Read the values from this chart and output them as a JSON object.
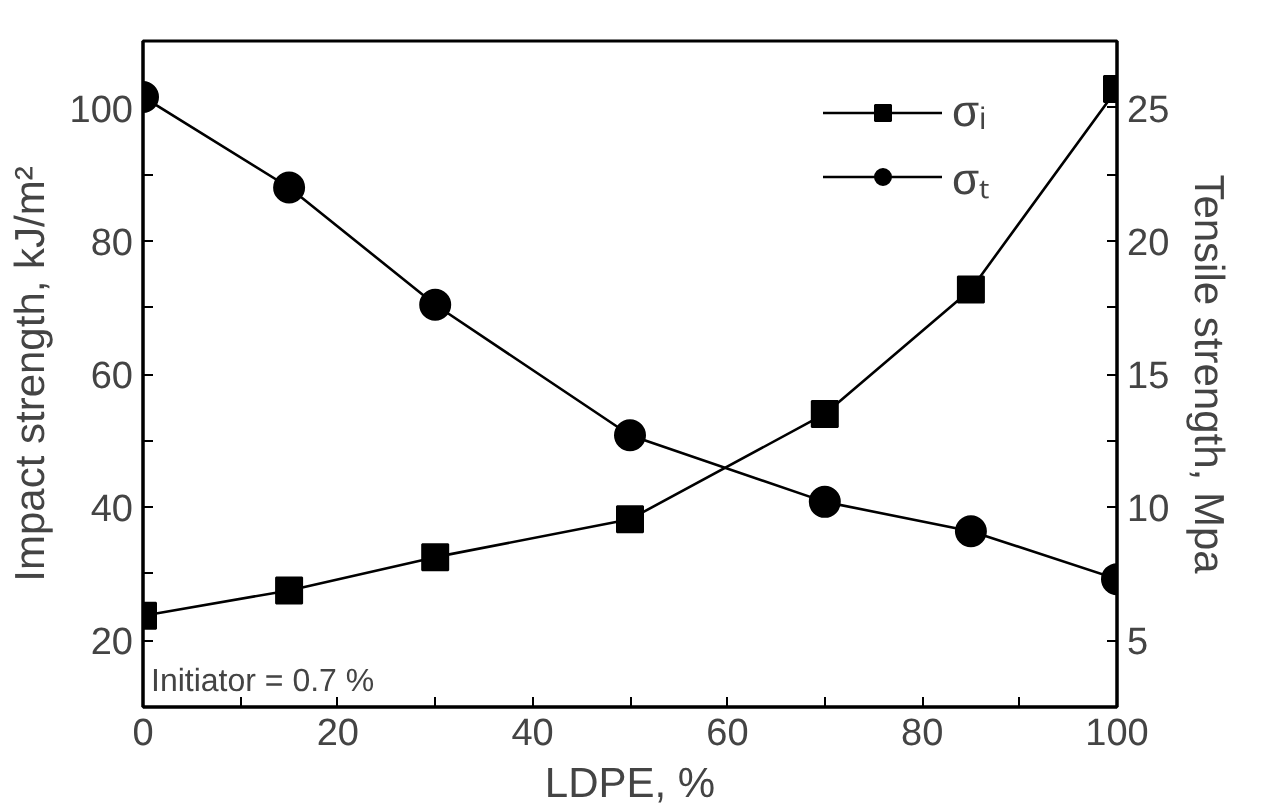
{
  "chart_data": {
    "type": "line",
    "xlabel": "LDPE, %",
    "ylabel": "Impact strength, kJ/m²",
    "y2label": "Tensile strength, Mpa",
    "x": [
      0,
      15,
      30,
      50,
      70,
      85,
      100
    ],
    "series": [
      {
        "name": "σᵢ",
        "color": "#000000",
        "marker": "square",
        "values": [
          23.7,
          27.5,
          32.5,
          38.2,
          54,
          72.7,
          102.8
        ]
      },
      {
        "name": "σₜ",
        "color": "#000000",
        "marker": "circle",
        "axis": "y2",
        "values": [
          25.4,
          22.0,
          17.6,
          12.7,
          10.2,
          9.1,
          7.3
        ]
      }
    ],
    "xlim": [
      0,
      100
    ],
    "xticks": [
      0,
      {
        "value": 10,
        "label": null
      },
      20,
      {
        "value": 30,
        "label": null
      },
      40,
      {
        "value": 50,
        "label": null
      },
      60,
      {
        "value": 70,
        "label": null
      },
      80,
      {
        "value": 90,
        "label": null
      },
      100
    ],
    "ylim": [
      10,
      110
    ],
    "yticks": [
      20,
      {
        "value": 30,
        "label": null
      },
      40,
      {
        "value": 50,
        "label": null
      },
      60,
      {
        "value": 70,
        "label": null
      },
      80,
      {
        "value": 90,
        "label": null
      },
      100
    ],
    "y2lim": [
      2.5,
      27.5
    ],
    "y2ticks": [
      5,
      {
        "value": 7.5,
        "label": null
      },
      10,
      {
        "value": 12.5,
        "label": null
      },
      15,
      {
        "value": 17.5,
        "label": null
      },
      20,
      {
        "value": 22.5,
        "label": null
      },
      25
    ],
    "annotations": [
      "Initiator = 0.7 %"
    ],
    "legend": "top right",
    "grid": false,
    "line_style": "solid"
  }
}
